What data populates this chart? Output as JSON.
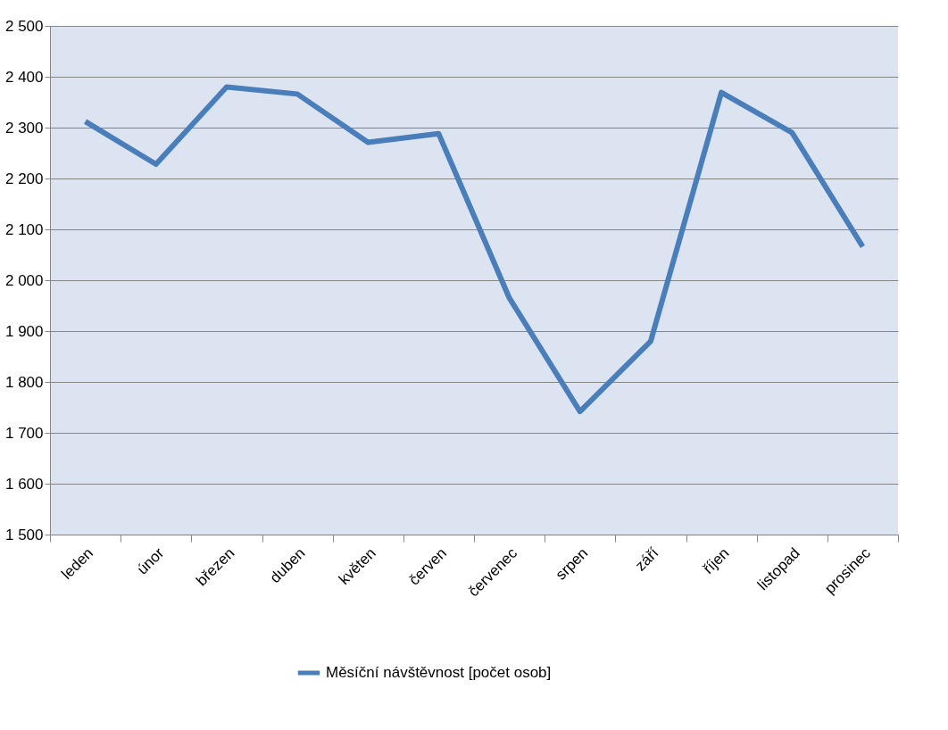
{
  "chart_data": {
    "type": "line",
    "categories": [
      "leden",
      "únor",
      "březen",
      "duben",
      "květen",
      "červen",
      "červenec",
      "srpen",
      "září",
      "říjen",
      "listopad",
      "prosinec"
    ],
    "series": [
      {
        "name": "Měsíční návštěvnost [počet osob]",
        "color": "#4a7ebb",
        "values": [
          2312,
          2228,
          2380,
          2366,
          2271,
          2288,
          1965,
          1742,
          1880,
          2369,
          2290,
          2066
        ]
      }
    ],
    "ylim": [
      1500,
      2500
    ],
    "yticks": [
      {
        "value": 1500,
        "label": "1 500"
      },
      {
        "value": 1600,
        "label": "1 600"
      },
      {
        "value": 1700,
        "label": "1 700"
      },
      {
        "value": 1800,
        "label": "1 800"
      },
      {
        "value": 1900,
        "label": "1 900"
      },
      {
        "value": 2000,
        "label": "2 000"
      },
      {
        "value": 2100,
        "label": "2 100"
      },
      {
        "value": 2200,
        "label": "2 200"
      },
      {
        "value": 2300,
        "label": "2 300"
      },
      {
        "value": 2400,
        "label": "2 400"
      },
      {
        "value": 2500,
        "label": "2 500"
      }
    ],
    "grid": "y",
    "legend": "bottom",
    "marker": "none",
    "line_style": "solid"
  }
}
